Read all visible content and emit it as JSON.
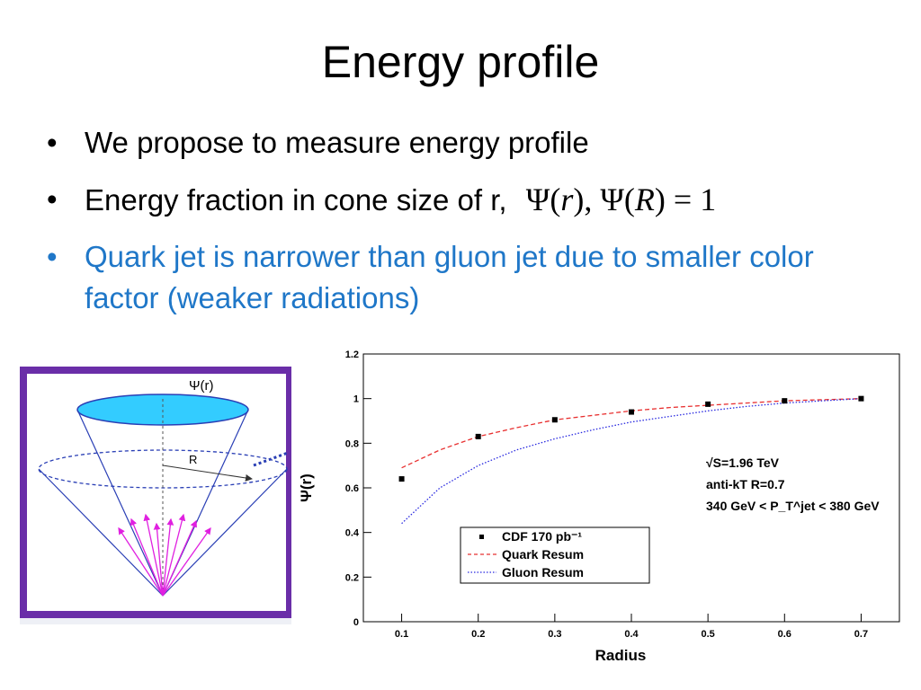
{
  "slide": {
    "title": "Energy profile",
    "bullets": [
      {
        "text": "We propose to measure energy profile"
      },
      {
        "text": "Energy fraction in cone size of r,",
        "formula": {
          "psi": "Ψ",
          "r": "r",
          "R": "R",
          "rhs": "1"
        }
      },
      {
        "text": "Quark jet is narrower than gluon jet due to smaller color factor (weaker radiations)"
      }
    ],
    "bullet_symbol": "•"
  },
  "cone_diagram": {
    "top_label": "Ψ(r)",
    "radius_label": "R",
    "colors": {
      "frame": "#6a2ea8",
      "cap": "#33ccff",
      "cone": "#2a3fb5",
      "arrows": "#e020e0"
    }
  },
  "chart_data": {
    "type": "scatter",
    "xlabel": "Radius",
    "ylabel": "Ψ(r)",
    "xlim": [
      0.05,
      0.75
    ],
    "ylim": [
      0,
      1.2
    ],
    "x_ticks": [
      "0.1",
      "0.2",
      "0.3",
      "0.4",
      "0.5",
      "0.6",
      "0.7"
    ],
    "y_ticks": [
      "0",
      "0.2",
      "0.4",
      "0.6",
      "0.8",
      "1",
      "1.2"
    ],
    "annotations": [
      "√S=1.96 TeV",
      "anti-kT R=0.7",
      "340 GeV < P_T^jet < 380 GeV"
    ],
    "legend": [
      "CDF 170 pb⁻¹",
      "Quark Resum",
      "Gluon Resum"
    ],
    "legend_placement": "bottom-center",
    "series": [
      {
        "name": "CDF 170 pb⁻¹",
        "style": "markers",
        "color": "#000000",
        "x": [
          0.1,
          0.2,
          0.3,
          0.4,
          0.5,
          0.6,
          0.7
        ],
        "y": [
          0.64,
          0.83,
          0.905,
          0.94,
          0.975,
          0.99,
          1.0
        ]
      },
      {
        "name": "Quark Resum",
        "style": "dashed",
        "color": "#e83030",
        "x": [
          0.1,
          0.15,
          0.2,
          0.25,
          0.3,
          0.35,
          0.4,
          0.45,
          0.5,
          0.55,
          0.6,
          0.65,
          0.7
        ],
        "y": [
          0.69,
          0.77,
          0.83,
          0.87,
          0.905,
          0.925,
          0.945,
          0.96,
          0.97,
          0.98,
          0.99,
          0.995,
          1.0
        ]
      },
      {
        "name": "Gluon Resum",
        "style": "dotted",
        "color": "#2828e0",
        "x": [
          0.1,
          0.15,
          0.2,
          0.25,
          0.3,
          0.35,
          0.4,
          0.45,
          0.5,
          0.55,
          0.6,
          0.65,
          0.7
        ],
        "y": [
          0.44,
          0.6,
          0.7,
          0.77,
          0.82,
          0.86,
          0.895,
          0.92,
          0.945,
          0.965,
          0.98,
          0.99,
          1.0
        ]
      }
    ]
  }
}
